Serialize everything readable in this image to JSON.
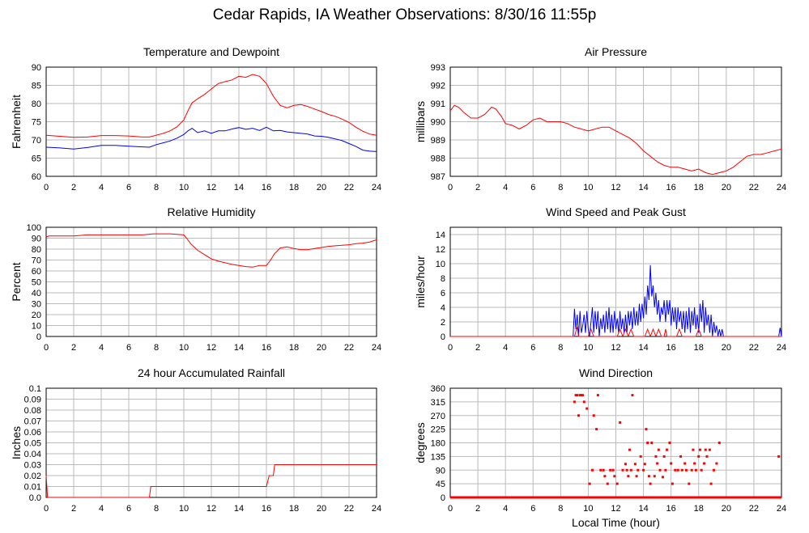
{
  "title": "Cedar Rapids, IA Weather Observations: 8/30/16 11:55p",
  "colors": {
    "red": "#ff0000",
    "blue": "#0000ff",
    "grid": "#bbbbbb"
  },
  "chart_data": [
    {
      "id": "temp",
      "type": "line",
      "title": "Temperature and Dewpoint",
      "xlabel": "",
      "ylabel": "Fahrenheit",
      "xlim": [
        0,
        24
      ],
      "ylim": [
        60,
        90
      ],
      "xticks": [
        0,
        2,
        4,
        6,
        8,
        10,
        12,
        14,
        16,
        18,
        20,
        22,
        24
      ],
      "yticks": [
        60,
        65,
        70,
        75,
        80,
        85,
        90
      ],
      "series": [
        {
          "color": "red",
          "x": [
            0,
            1,
            2,
            3,
            4,
            5,
            6,
            7,
            7.5,
            8,
            8.5,
            9,
            9.5,
            10,
            10.3,
            10.6,
            11,
            11.5,
            12,
            12.5,
            13,
            13.5,
            14,
            14.5,
            15,
            15.5,
            16,
            16.5,
            17,
            17.5,
            18,
            18.5,
            19,
            19.5,
            20,
            20.5,
            21,
            21.5,
            22,
            22.5,
            23,
            23.5,
            24
          ],
          "y": [
            71.3,
            71,
            70.7,
            70.8,
            71.2,
            71.2,
            71.1,
            70.8,
            70.8,
            71.3,
            71.8,
            72.5,
            73.6,
            75.5,
            78,
            80.2,
            81.3,
            82.5,
            84,
            85.5,
            86,
            86.5,
            87.5,
            87.2,
            88,
            87.5,
            85.5,
            82,
            79.5,
            78.8,
            79.5,
            79.7,
            79.2,
            78.5,
            77.8,
            77,
            76.5,
            75.7,
            74.8,
            73.5,
            72.4,
            71.6,
            71.3
          ]
        },
        {
          "color": "blue",
          "x": [
            0,
            1,
            2,
            3,
            4,
            5,
            6,
            7,
            7.5,
            8,
            8.5,
            9,
            9.5,
            10,
            10.3,
            10.6,
            11,
            11.5,
            12,
            12.5,
            13,
            13.5,
            14,
            14.5,
            15,
            15.5,
            16,
            16.5,
            17,
            17.5,
            18,
            18.5,
            19,
            19.5,
            20,
            20.5,
            21,
            21.5,
            22,
            22.5,
            23,
            23.5,
            24
          ],
          "y": [
            68,
            67.8,
            67.5,
            67.9,
            68.5,
            68.5,
            68.3,
            68.1,
            68,
            68.7,
            69.2,
            69.7,
            70.5,
            71.5,
            72.5,
            73.2,
            72,
            72.5,
            71.8,
            72.5,
            72.5,
            73,
            73.4,
            72.9,
            73.2,
            72.6,
            73.5,
            72.5,
            72.6,
            72.2,
            72,
            71.8,
            71.6,
            71.1,
            71,
            70.7,
            70.3,
            69.8,
            69,
            68.2,
            67.2,
            66.9,
            66.8
          ]
        }
      ]
    },
    {
      "id": "pressure",
      "type": "line",
      "title": "Air Pressure",
      "xlabel": "",
      "ylabel": "millibars",
      "xlim": [
        0,
        24
      ],
      "ylim": [
        987,
        993
      ],
      "xticks": [
        0,
        2,
        4,
        6,
        8,
        10,
        12,
        14,
        16,
        18,
        20,
        22,
        24
      ],
      "yticks": [
        987,
        988,
        989,
        990,
        991,
        992,
        993
      ],
      "series": [
        {
          "color": "red",
          "x": [
            0,
            0.3,
            0.6,
            1,
            1.5,
            2,
            2.5,
            3,
            3.3,
            3.7,
            4,
            4.5,
            5,
            5.5,
            6,
            6.5,
            7,
            7.5,
            8,
            8.5,
            9,
            9.5,
            10,
            10.5,
            11,
            11.5,
            12,
            12.5,
            13,
            13.5,
            14,
            14.5,
            15,
            15.5,
            16,
            16.5,
            17,
            17.5,
            18,
            18.5,
            19,
            19.5,
            20,
            20.5,
            21,
            21.5,
            22,
            22.5,
            23,
            23.5,
            24
          ],
          "y": [
            990.6,
            990.9,
            990.8,
            990.5,
            990.2,
            990.2,
            990.4,
            990.8,
            990.7,
            990.3,
            989.9,
            989.8,
            989.6,
            989.8,
            990.1,
            990.2,
            990,
            990,
            990,
            989.9,
            989.7,
            989.6,
            989.5,
            989.6,
            989.7,
            989.7,
            989.5,
            989.3,
            989.1,
            988.8,
            988.4,
            988.1,
            987.8,
            987.6,
            987.5,
            987.5,
            987.4,
            987.3,
            987.4,
            987.2,
            987.1,
            987.2,
            987.3,
            987.5,
            987.8,
            988.1,
            988.2,
            988.2,
            988.3,
            988.4,
            988.5
          ]
        }
      ]
    },
    {
      "id": "rh",
      "type": "line",
      "title": "Relative Humidity",
      "xlabel": "",
      "ylabel": "Percent",
      "xlim": [
        0,
        24
      ],
      "ylim": [
        0,
        100
      ],
      "xticks": [
        0,
        2,
        4,
        6,
        8,
        10,
        12,
        14,
        16,
        18,
        20,
        22,
        24
      ],
      "yticks": [
        0,
        10,
        20,
        30,
        40,
        50,
        60,
        70,
        80,
        90,
        100
      ],
      "series": [
        {
          "color": "red",
          "x": [
            0,
            0.2,
            1,
            2,
            3,
            4,
            5,
            6,
            7,
            7.8,
            8,
            9,
            10,
            10.2,
            10.5,
            11,
            11.5,
            12,
            12.5,
            13,
            13.5,
            14,
            14.5,
            15,
            15.5,
            16,
            16.3,
            16.6,
            17,
            17.5,
            18,
            18.5,
            19,
            19.5,
            20,
            20.5,
            21,
            21.5,
            22,
            22.5,
            23,
            23.5,
            24
          ],
          "y": [
            91,
            92,
            92,
            92,
            93,
            93,
            93,
            93,
            93,
            94,
            94,
            94,
            93,
            90,
            85,
            79,
            75,
            71,
            69,
            67.5,
            66,
            65,
            64,
            63.5,
            65,
            65,
            70,
            76,
            81,
            82,
            80.5,
            79.5,
            79.5,
            80.5,
            81.5,
            82.5,
            83,
            83.5,
            84,
            85,
            85.5,
            86.5,
            88.5
          ]
        }
      ]
    },
    {
      "id": "wind",
      "type": "line",
      "title": "Wind Speed and Peak Gust",
      "xlabel": "",
      "ylabel": "miles/hour",
      "xlim": [
        0,
        24
      ],
      "ylim": [
        0,
        15
      ],
      "xticks": [
        0,
        2,
        4,
        6,
        8,
        10,
        12,
        14,
        16,
        18,
        20,
        22,
        24
      ],
      "yticks": [
        0,
        2,
        4,
        6,
        8,
        10,
        12,
        14
      ],
      "series": [
        {
          "color": "blue",
          "x": [
            0,
            8.9,
            9.0,
            9.1,
            9.2,
            9.3,
            9.4,
            9.5,
            9.6,
            9.7,
            9.8,
            9.9,
            10.0,
            10.1,
            10.2,
            10.3,
            10.4,
            10.5,
            10.6,
            10.7,
            10.8,
            10.9,
            11.0,
            11.1,
            11.2,
            11.3,
            11.4,
            11.5,
            11.6,
            11.7,
            11.8,
            11.9,
            12.0,
            12.1,
            12.2,
            12.3,
            12.4,
            12.5,
            12.6,
            12.7,
            12.8,
            12.9,
            13.0,
            13.1,
            13.2,
            13.3,
            13.4,
            13.5,
            13.6,
            13.7,
            13.8,
            13.9,
            14.0,
            14.1,
            14.2,
            14.3,
            14.4,
            14.5,
            14.6,
            14.7,
            14.8,
            14.9,
            15.0,
            15.1,
            15.2,
            15.3,
            15.4,
            15.5,
            15.6,
            15.7,
            15.8,
            15.9,
            16.0,
            16.1,
            16.2,
            16.3,
            16.4,
            16.5,
            16.6,
            16.7,
            16.8,
            16.9,
            17.0,
            17.1,
            17.2,
            17.3,
            17.4,
            17.5,
            17.6,
            17.7,
            17.8,
            17.9,
            18.0,
            18.1,
            18.2,
            18.3,
            18.4,
            18.5,
            18.6,
            18.7,
            18.8,
            18.9,
            19.0,
            19.1,
            19.2,
            19.3,
            19.4,
            19.5,
            19.6,
            19.7,
            19.8,
            23.8,
            23.9,
            24.0
          ],
          "y": [
            0,
            0,
            3.8,
            1,
            3,
            0,
            3.5,
            0.5,
            1.5,
            3,
            0.5,
            3.5,
            1,
            0,
            2,
            4,
            0.5,
            3.5,
            1,
            3.5,
            0,
            2.5,
            1,
            3,
            0.5,
            3.5,
            1,
            4,
            0.5,
            3,
            0.5,
            3.5,
            1,
            2.5,
            0.5,
            3.5,
            1,
            2.5,
            0.5,
            3,
            0.5,
            3.5,
            1.5,
            3.5,
            1,
            4,
            1.5,
            3.5,
            1.5,
            4.5,
            2,
            4.5,
            2.5,
            5.5,
            3,
            7,
            5,
            9.8,
            5.5,
            7,
            4,
            6,
            3,
            5,
            2,
            4,
            3,
            5,
            2,
            5,
            3,
            5,
            1.5,
            4,
            2,
            4,
            1,
            4,
            2,
            3.5,
            1,
            3.5,
            0.5,
            3.5,
            1,
            4,
            0.5,
            3.5,
            1.5,
            4,
            1,
            3,
            0.5,
            4.5,
            2,
            5,
            0.5,
            4,
            1.5,
            3,
            0.5,
            3,
            0,
            2,
            0.5,
            1.5,
            0,
            1,
            0,
            1,
            0,
            0,
            1.2,
            0
          ]
        },
        {
          "color": "red",
          "x": [
            0,
            8.9,
            9.0,
            9.2,
            9.3,
            9.5,
            10.0,
            10.2,
            10.4,
            10.6,
            12.0,
            12.1,
            12.3,
            12.5,
            12.7,
            12.9,
            13.1,
            13.3,
            13.5,
            13.7,
            13.9,
            14.0,
            14.1,
            14.3,
            14.5,
            14.7,
            14.9,
            15.1,
            15.3,
            15.5,
            15.6,
            15.7,
            15.8,
            16.0,
            16.2,
            16.4,
            16.6,
            16.8,
            17.0,
            17.2,
            17.4,
            17.6,
            17.8,
            18.0,
            18.2,
            18.4,
            24
          ],
          "y": [
            0,
            0,
            0,
            1.3,
            0,
            0,
            0,
            1,
            0,
            0,
            0,
            0,
            1,
            0,
            1,
            0,
            1,
            0,
            0,
            0,
            0,
            0,
            0,
            1,
            0,
            1,
            0,
            1,
            0,
            0,
            1,
            0,
            0,
            0,
            0,
            0,
            1,
            0,
            0,
            0,
            0,
            0,
            0,
            1,
            0,
            0,
            0
          ]
        }
      ]
    },
    {
      "id": "rain",
      "type": "line",
      "title": "24 hour Accumulated Rainfall",
      "xlabel": "",
      "ylabel": "Inches",
      "xlim": [
        0,
        24
      ],
      "ylim": [
        0,
        0.1
      ],
      "xticks": [
        0,
        2,
        4,
        6,
        8,
        10,
        12,
        14,
        16,
        18,
        20,
        22,
        24
      ],
      "yticks": [
        0.0,
        0.01,
        0.02,
        0.03,
        0.04,
        0.05,
        0.06,
        0.07,
        0.08,
        0.09,
        0.1
      ],
      "series": [
        {
          "color": "red",
          "x": [
            0,
            0.1,
            0.2,
            7.5,
            7.6,
            16.0,
            16.2,
            16.5,
            16.6,
            24
          ],
          "y": [
            0.02,
            0,
            0,
            0,
            0.01,
            0.01,
            0.02,
            0.02,
            0.03,
            0.03
          ]
        }
      ]
    },
    {
      "id": "dir",
      "type": "scatter",
      "title": "Wind Direction",
      "xlabel": "Local Time (hour)",
      "ylabel": "degrees",
      "xlim": [
        0,
        24
      ],
      "ylim": [
        0,
        360
      ],
      "xticks": [
        0,
        2,
        4,
        6,
        8,
        10,
        12,
        14,
        16,
        18,
        20,
        22,
        24
      ],
      "yticks": [
        0,
        45,
        90,
        135,
        180,
        225,
        270,
        315,
        360
      ],
      "series": [
        {
          "color": "red",
          "x": [
            9.0,
            9.1,
            9.2,
            9.3,
            9.4,
            9.5,
            9.6,
            9.7,
            9.9,
            10.1,
            10.3,
            10.4,
            10.6,
            10.7,
            10.9,
            11.1,
            11.2,
            11.4,
            11.6,
            11.8,
            11.9,
            12.1,
            12.3,
            12.5,
            12.7,
            12.8,
            12.9,
            13.0,
            13.1,
            13.2,
            13.4,
            13.5,
            13.6,
            13.8,
            14.0,
            14.1,
            14.2,
            14.3,
            14.4,
            14.5,
            14.6,
            14.8,
            14.9,
            15.0,
            15.1,
            15.2,
            15.4,
            15.5,
            15.6,
            15.7,
            15.9,
            16.0,
            16.1,
            16.3,
            16.5,
            16.7,
            16.8,
            17.0,
            17.1,
            17.3,
            17.5,
            17.6,
            17.7,
            17.8,
            18.0,
            18.1,
            18.2,
            18.4,
            18.5,
            18.6,
            18.8,
            18.9,
            19.1,
            19.3,
            19.5,
            19.7,
            23.8
          ],
          "y": [
            315,
            337,
            337,
            270,
            337,
            337,
            337,
            315,
            293,
            45,
            90,
            270,
            225,
            337,
            90,
            90,
            70,
            45,
            90,
            90,
            70,
            45,
            247,
            90,
            110,
            90,
            70,
            157,
            90,
            337,
            110,
            70,
            90,
            135,
            90,
            110,
            225,
            180,
            70,
            45,
            180,
            70,
            135,
            112,
            157,
            90,
            67,
            135,
            90,
            157,
            180,
            112,
            45,
            90,
            90,
            135,
            90,
            112,
            90,
            45,
            90,
            157,
            112,
            90,
            135,
            157,
            90,
            112,
            157,
            135,
            157,
            45,
            90,
            112,
            180,
            0,
            135
          ]
        }
      ]
    }
  ]
}
